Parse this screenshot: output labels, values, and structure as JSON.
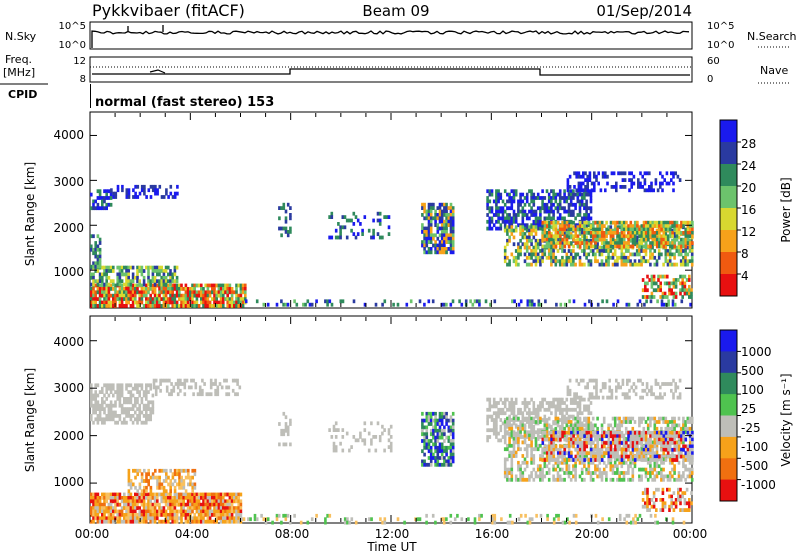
{
  "header": {
    "station": "Pykkvibaer (fitACF)",
    "beam": "Beam 09",
    "date": "01/Sep/2014"
  },
  "top_panels": {
    "nsky_label": "N.Sky",
    "nsky_ticks": [
      "10^5",
      "10^0"
    ],
    "nsearch_label": "N.Search",
    "nsearch_ticks": [
      "10^5",
      "10^0"
    ],
    "freq_label_1": "Freq.",
    "freq_label_2": "[MHz]",
    "freq_ticks": [
      "12",
      "8"
    ],
    "nave_label": "Nave",
    "nave_ticks": [
      "60",
      "0"
    ],
    "cpid_label": "CPID",
    "cpid_text": "normal (fast stereo) 153"
  },
  "chart_data": [
    {
      "type": "heatmap",
      "name": "power",
      "ylabel": "Slant Range [km]",
      "yticks": [
        "4000",
        "3000",
        "2000",
        "1000"
      ],
      "ylim": [
        180,
        4500
      ],
      "xlim": [
        0,
        24
      ],
      "colorbar_label": "Power [dB]",
      "colorbar_ticks": [
        "28",
        "24",
        "20",
        "16",
        "12",
        "8",
        "4"
      ],
      "colorbar_colors": [
        "#1a1aee",
        "#2a3aa0",
        "#2f8a5c",
        "#6cc36c",
        "#d8d830",
        "#f6a21a",
        "#f05a10",
        "#e81010"
      ],
      "colors": {
        "blue": "#1a1aee",
        "navy": "#2a3aa0",
        "teal": "#2f8a5c",
        "green": "#6cc36c",
        "yellow": "#d8d830",
        "orange": "#f6a21a",
        "orangered": "#f05a10",
        "red": "#e81010"
      }
    },
    {
      "type": "heatmap",
      "name": "velocity",
      "ylabel": "Slant Range [km]",
      "yticks": [
        "4000",
        "3000",
        "2000",
        "1000"
      ],
      "ylim": [
        180,
        4500
      ],
      "xlim": [
        0,
        24
      ],
      "xlabel": "Time UT",
      "xticks": [
        "00:00",
        "04:00",
        "08:00",
        "12:00",
        "16:00",
        "20:00",
        "00:00"
      ],
      "colorbar_label": "Velocity [m s⁻¹]",
      "colorbar_ticks": [
        "1000",
        "500",
        "100",
        "25",
        "-25",
        "-100",
        "-500",
        "-1000"
      ],
      "colorbar_colors": [
        "#1a1aee",
        "#2a3aa0",
        "#2f8a5c",
        "#4fc34f",
        "#bebeb8",
        "#f6a21a",
        "#f07010",
        "#e81010"
      ],
      "colors": {
        "grey": "#bebeb8",
        "lightorange": "#f8c060",
        "orange": "#f6a21a",
        "darkorange": "#f07010",
        "red": "#e81010",
        "green": "#4fc34f",
        "teal": "#2f8a5c",
        "navy": "#2a3aa0",
        "blue": "#1a1aee"
      }
    }
  ]
}
